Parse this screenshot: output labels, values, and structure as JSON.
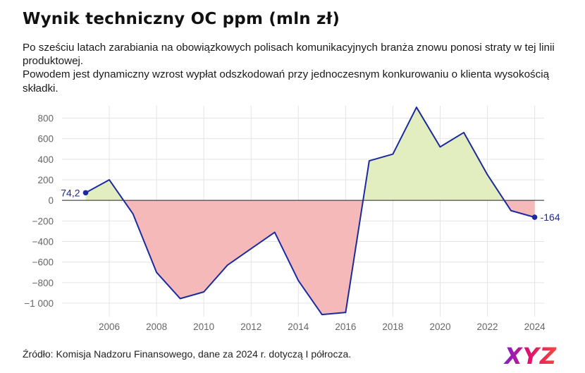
{
  "title": "Wynik techniczny OC ppm (mln zł)",
  "subtitle": {
    "line1": "Po sześciu latach zarabiania na obowiązkowych polisach komunikacyjnych branża znowu ponosi straty w tej linii produktowej.",
    "line2": "Powodem jest dynamiczny wzrost wypłat odszkodowań przy jednoczesnym konkurowaniu o klienta wysokością składki."
  },
  "source": "Źródło: Komisja Nadzoru Finansowego, dane za 2024 r. dotyczą I półrocza.",
  "colors": {
    "line": "#1b2a9e",
    "positive_fill": "#e2eebf",
    "negative_fill": "#f5b9b9",
    "grid": "#e4e4e4",
    "zero_line": "#222222"
  },
  "chart_data": {
    "type": "area",
    "x": [
      2005,
      2006,
      2007,
      2008,
      2009,
      2010,
      2011,
      2012,
      2013,
      2014,
      2015,
      2016,
      2017,
      2018,
      2019,
      2020,
      2021,
      2022,
      2023,
      2024
    ],
    "values": [
      74.2,
      200,
      -130,
      -700,
      -955,
      -890,
      -630,
      -470,
      -310,
      -780,
      -1110,
      -1090,
      385,
      450,
      905,
      520,
      660,
      250,
      -100,
      -164
    ],
    "xticks": [
      2006,
      2008,
      2010,
      2012,
      2014,
      2016,
      2018,
      2020,
      2022,
      2024
    ],
    "yticks": [
      -1000,
      -800,
      -600,
      -400,
      -200,
      0,
      200,
      400,
      600,
      800
    ],
    "ytick_labels": [
      "−1 000",
      "−800",
      "−600",
      "−400",
      "−200",
      "0",
      "200",
      "400",
      "600",
      "800"
    ],
    "xlim": [
      2004,
      2024.4
    ],
    "ylim": [
      -1130,
      920
    ],
    "grid": true,
    "data_labels": [
      {
        "x": 2005,
        "value": 74.2,
        "text": "74,2",
        "side": "left"
      },
      {
        "x": 2024,
        "value": -164,
        "text": "-164",
        "side": "right"
      }
    ]
  },
  "logo": {
    "text": "XYZ"
  }
}
